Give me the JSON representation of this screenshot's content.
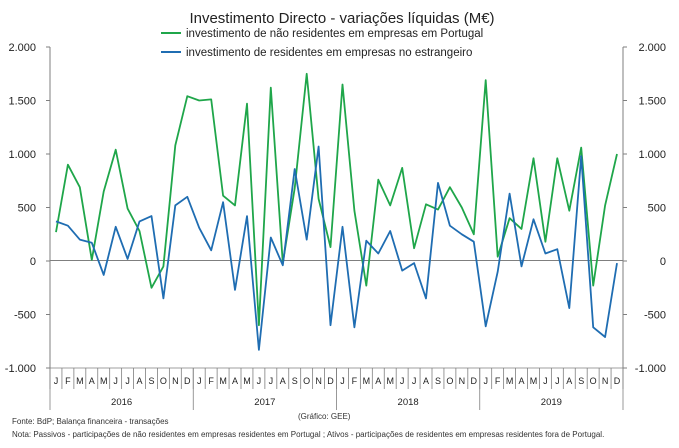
{
  "chart_data": {
    "type": "line",
    "title": "Investimento Directo - variações líquidas (M€)",
    "ylim": [
      -1000,
      2000
    ],
    "yticks": [
      -1000,
      -500,
      0,
      500,
      1000,
      1500,
      2000
    ],
    "ytick_labels": [
      "-1.000",
      "-500",
      "0",
      "500",
      "1.000",
      "1.500",
      "2.000"
    ],
    "month_labels": [
      "J",
      "F",
      "M",
      "A",
      "M",
      "J",
      "J",
      "A",
      "S",
      "O",
      "N",
      "D"
    ],
    "years": [
      "2016",
      "2017",
      "2018",
      "2019"
    ],
    "series": [
      {
        "name": "investimento de não residentes em empresas em Portugal",
        "color": "#1fa64a",
        "values": [
          270,
          900,
          690,
          10,
          650,
          1040,
          490,
          280,
          -250,
          -50,
          1080,
          1540,
          1500,
          1510,
          610,
          520,
          1470,
          -600,
          1620,
          -20,
          680,
          1750,
          580,
          130,
          1650,
          470,
          -230,
          760,
          520,
          870,
          120,
          530,
          480,
          690,
          500,
          250,
          1690,
          40,
          400,
          300,
          960,
          180,
          960,
          470,
          1060,
          -230,
          520,
          1000
        ]
      },
      {
        "name": "investimento de residentes em empresas no estrangeiro",
        "color": "#1f6db2",
        "values": [
          370,
          330,
          200,
          170,
          -130,
          320,
          20,
          370,
          420,
          -350,
          520,
          600,
          310,
          100,
          550,
          -270,
          420,
          -830,
          220,
          -40,
          860,
          200,
          1070,
          -600,
          320,
          -620,
          190,
          70,
          280,
          -90,
          -20,
          -350,
          730,
          330,
          250,
          180,
          -610,
          -100,
          630,
          -50,
          390,
          70,
          110,
          -440,
          980,
          -620,
          -710,
          -20
        ]
      }
    ],
    "notes": {
      "source": "Fonte: BdP; Balança financeira - transações",
      "credit": "(Gráfico: GEE)",
      "nota": "Nota: Passivos - participações de não residentes em empresas residentes em Portugal ; Ativos - participações de residentes em empresas residentes fora de Portugal."
    }
  }
}
